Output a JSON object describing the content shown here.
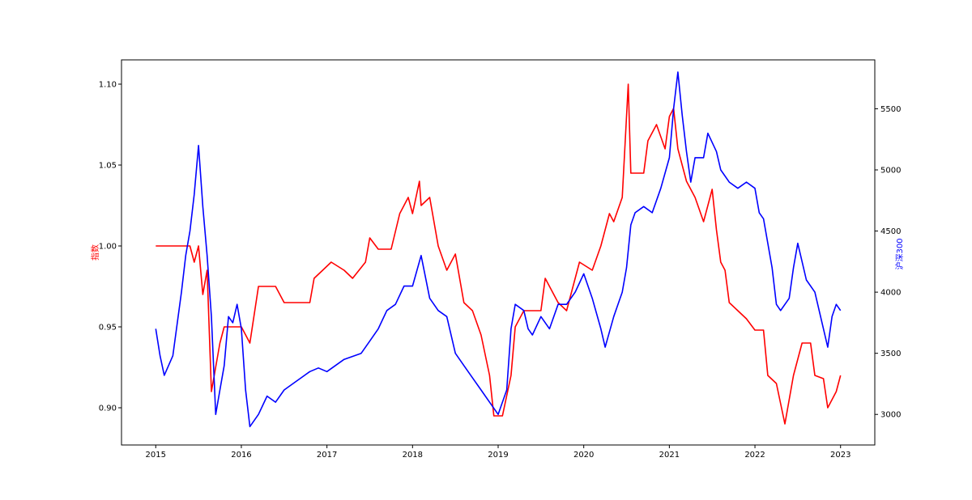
{
  "chart_data": {
    "type": "line",
    "title": "",
    "xlabel": "",
    "ylabel_left": "指数",
    "ylabel_right": "沪深300",
    "x_ticks": [
      "2015",
      "2016",
      "2017",
      "2018",
      "2019",
      "2020",
      "2021",
      "2022",
      "2023"
    ],
    "x_range": [
      2014.6,
      2023.4
    ],
    "ylim_left": [
      0.877,
      1.115
    ],
    "ylim_right": [
      2750,
      5900
    ],
    "y_ticks_left": [
      {
        "value": 0.9,
        "label": "0.90"
      },
      {
        "value": 0.95,
        "label": "0.95"
      },
      {
        "value": 1.0,
        "label": "1.00"
      },
      {
        "value": 1.05,
        "label": "1.05"
      },
      {
        "value": 1.1,
        "label": "1.10"
      }
    ],
    "y_ticks_right": [
      {
        "value": 3000,
        "label": "3000"
      },
      {
        "value": 3500,
        "label": "3500"
      },
      {
        "value": 4000,
        "label": "4000"
      },
      {
        "value": 4500,
        "label": "4500"
      },
      {
        "value": 5000,
        "label": "5000"
      },
      {
        "value": 5500,
        "label": "5500"
      }
    ],
    "grid": false,
    "legend": "none",
    "colors": {
      "index": "#ff0000",
      "hs300": "#0000ff",
      "axes": "#000000"
    },
    "series": [
      {
        "axis": "left",
        "color": "#ff0000",
        "points": [
          [
            2015.0,
            1.0
          ],
          [
            2015.4,
            1.0
          ],
          [
            2015.45,
            0.99
          ],
          [
            2015.5,
            1.0
          ],
          [
            2015.55,
            0.97
          ],
          [
            2015.6,
            0.985
          ],
          [
            2015.65,
            0.91
          ],
          [
            2015.75,
            0.94
          ],
          [
            2015.8,
            0.95
          ],
          [
            2016.0,
            0.95
          ],
          [
            2016.1,
            0.94
          ],
          [
            2016.2,
            0.975
          ],
          [
            2016.4,
            0.975
          ],
          [
            2016.5,
            0.965
          ],
          [
            2016.8,
            0.965
          ],
          [
            2016.85,
            0.98
          ],
          [
            2016.95,
            0.985
          ],
          [
            2017.05,
            0.99
          ],
          [
            2017.2,
            0.985
          ],
          [
            2017.3,
            0.98
          ],
          [
            2017.45,
            0.99
          ],
          [
            2017.5,
            1.005
          ],
          [
            2017.6,
            0.998
          ],
          [
            2017.75,
            0.998
          ],
          [
            2017.85,
            1.02
          ],
          [
            2017.95,
            1.03
          ],
          [
            2018.0,
            1.02
          ],
          [
            2018.08,
            1.04
          ],
          [
            2018.1,
            1.025
          ],
          [
            2018.2,
            1.03
          ],
          [
            2018.3,
            1.0
          ],
          [
            2018.4,
            0.985
          ],
          [
            2018.5,
            0.995
          ],
          [
            2018.6,
            0.965
          ],
          [
            2018.7,
            0.96
          ],
          [
            2018.8,
            0.945
          ],
          [
            2018.9,
            0.92
          ],
          [
            2018.95,
            0.895
          ],
          [
            2019.05,
            0.895
          ],
          [
            2019.15,
            0.92
          ],
          [
            2019.2,
            0.95
          ],
          [
            2019.3,
            0.96
          ],
          [
            2019.5,
            0.96
          ],
          [
            2019.55,
            0.98
          ],
          [
            2019.7,
            0.965
          ],
          [
            2019.8,
            0.96
          ],
          [
            2019.95,
            0.99
          ],
          [
            2020.1,
            0.985
          ],
          [
            2020.2,
            1.0
          ],
          [
            2020.3,
            1.02
          ],
          [
            2020.35,
            1.015
          ],
          [
            2020.45,
            1.03
          ],
          [
            2020.52,
            1.1
          ],
          [
            2020.55,
            1.045
          ],
          [
            2020.7,
            1.045
          ],
          [
            2020.75,
            1.065
          ],
          [
            2020.85,
            1.075
          ],
          [
            2020.95,
            1.06
          ],
          [
            2021.0,
            1.08
          ],
          [
            2021.05,
            1.085
          ],
          [
            2021.1,
            1.06
          ],
          [
            2021.2,
            1.04
          ],
          [
            2021.3,
            1.03
          ],
          [
            2021.4,
            1.015
          ],
          [
            2021.5,
            1.035
          ],
          [
            2021.55,
            1.01
          ],
          [
            2021.6,
            0.99
          ],
          [
            2021.65,
            0.985
          ],
          [
            2021.7,
            0.965
          ],
          [
            2021.8,
            0.96
          ],
          [
            2021.9,
            0.955
          ],
          [
            2022.0,
            0.948
          ],
          [
            2022.1,
            0.948
          ],
          [
            2022.15,
            0.92
          ],
          [
            2022.25,
            0.915
          ],
          [
            2022.35,
            0.89
          ],
          [
            2022.45,
            0.92
          ],
          [
            2022.55,
            0.94
          ],
          [
            2022.65,
            0.94
          ],
          [
            2022.7,
            0.92
          ],
          [
            2022.8,
            0.918
          ],
          [
            2022.85,
            0.9
          ],
          [
            2022.95,
            0.91
          ],
          [
            2023.0,
            0.92
          ]
        ]
      },
      {
        "axis": "right",
        "color": "#0000ff",
        "points": [
          [
            2015.0,
            3700
          ],
          [
            2015.05,
            3480
          ],
          [
            2015.1,
            3320
          ],
          [
            2015.2,
            3480
          ],
          [
            2015.3,
            4000
          ],
          [
            2015.35,
            4300
          ],
          [
            2015.4,
            4500
          ],
          [
            2015.45,
            4800
          ],
          [
            2015.5,
            5200
          ],
          [
            2015.55,
            4700
          ],
          [
            2015.6,
            4300
          ],
          [
            2015.65,
            3800
          ],
          [
            2015.7,
            3000
          ],
          [
            2015.75,
            3200
          ],
          [
            2015.8,
            3400
          ],
          [
            2015.85,
            3800
          ],
          [
            2015.9,
            3750
          ],
          [
            2015.95,
            3900
          ],
          [
            2016.0,
            3700
          ],
          [
            2016.05,
            3200
          ],
          [
            2016.1,
            2900
          ],
          [
            2016.2,
            3000
          ],
          [
            2016.3,
            3150
          ],
          [
            2016.4,
            3100
          ],
          [
            2016.5,
            3200
          ],
          [
            2016.6,
            3250
          ],
          [
            2016.7,
            3300
          ],
          [
            2016.8,
            3350
          ],
          [
            2016.9,
            3380
          ],
          [
            2017.0,
            3350
          ],
          [
            2017.2,
            3450
          ],
          [
            2017.4,
            3500
          ],
          [
            2017.5,
            3600
          ],
          [
            2017.6,
            3700
          ],
          [
            2017.7,
            3850
          ],
          [
            2017.8,
            3900
          ],
          [
            2017.9,
            4050
          ],
          [
            2018.0,
            4050
          ],
          [
            2018.1,
            4300
          ],
          [
            2018.2,
            3950
          ],
          [
            2018.3,
            3850
          ],
          [
            2018.4,
            3800
          ],
          [
            2018.5,
            3500
          ],
          [
            2018.6,
            3400
          ],
          [
            2018.7,
            3300
          ],
          [
            2018.8,
            3200
          ],
          [
            2018.9,
            3100
          ],
          [
            2019.0,
            3000
          ],
          [
            2019.1,
            3200
          ],
          [
            2019.15,
            3700
          ],
          [
            2019.2,
            3900
          ],
          [
            2019.3,
            3850
          ],
          [
            2019.35,
            3700
          ],
          [
            2019.4,
            3650
          ],
          [
            2019.5,
            3800
          ],
          [
            2019.6,
            3700
          ],
          [
            2019.7,
            3900
          ],
          [
            2019.8,
            3900
          ],
          [
            2019.9,
            4000
          ],
          [
            2020.0,
            4150
          ],
          [
            2020.1,
            3950
          ],
          [
            2020.2,
            3700
          ],
          [
            2020.25,
            3550
          ],
          [
            2020.35,
            3800
          ],
          [
            2020.45,
            4000
          ],
          [
            2020.5,
            4200
          ],
          [
            2020.55,
            4550
          ],
          [
            2020.6,
            4650
          ],
          [
            2020.7,
            4700
          ],
          [
            2020.8,
            4650
          ],
          [
            2020.9,
            4850
          ],
          [
            2021.0,
            5100
          ],
          [
            2021.05,
            5500
          ],
          [
            2021.1,
            5800
          ],
          [
            2021.15,
            5450
          ],
          [
            2021.2,
            5150
          ],
          [
            2021.25,
            4900
          ],
          [
            2021.3,
            5100
          ],
          [
            2021.4,
            5100
          ],
          [
            2021.45,
            5300
          ],
          [
            2021.55,
            5150
          ],
          [
            2021.6,
            5000
          ],
          [
            2021.7,
            4900
          ],
          [
            2021.8,
            4850
          ],
          [
            2021.9,
            4900
          ],
          [
            2022.0,
            4850
          ],
          [
            2022.05,
            4650
          ],
          [
            2022.1,
            4600
          ],
          [
            2022.2,
            4200
          ],
          [
            2022.25,
            3900
          ],
          [
            2022.3,
            3850
          ],
          [
            2022.4,
            3950
          ],
          [
            2022.45,
            4200
          ],
          [
            2022.5,
            4400
          ],
          [
            2022.55,
            4250
          ],
          [
            2022.6,
            4100
          ],
          [
            2022.7,
            4000
          ],
          [
            2022.75,
            3850
          ],
          [
            2022.8,
            3700
          ],
          [
            2022.85,
            3550
          ],
          [
            2022.9,
            3800
          ],
          [
            2022.95,
            3900
          ],
          [
            2023.0,
            3850
          ]
        ]
      }
    ]
  }
}
